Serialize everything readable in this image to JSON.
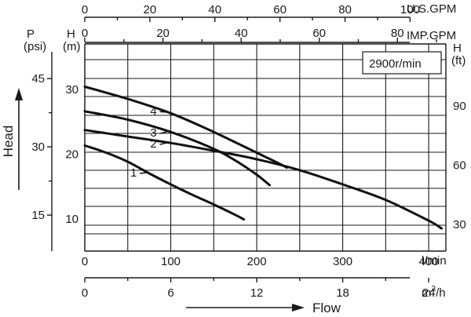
{
  "chart_data": {
    "type": "line",
    "speed_label": "2900r/min",
    "xlabel": "Flow",
    "ylabel": "Head",
    "grid": true,
    "axes": {
      "bottom_lmin": {
        "unit": "l/min",
        "ticks": [
          0,
          100,
          200,
          300,
          400
        ],
        "range": [
          0,
          420
        ]
      },
      "bottom_m3h": {
        "unit": "m³/h",
        "ticks": [
          0,
          6,
          12,
          18,
          24
        ],
        "range": [
          0,
          25.2
        ]
      },
      "top_usgpm": {
        "unit": "U.S.GPM",
        "ticks": [
          0,
          20,
          40,
          60,
          80,
          100
        ],
        "range": [
          0,
          111
        ]
      },
      "top_impgpm": {
        "unit": "IMP.GPM",
        "ticks": [
          0,
          20,
          40,
          60,
          80
        ],
        "range": [
          0,
          92.4
        ]
      },
      "left_m": {
        "unit": "H\n(m)",
        "ticks": [
          10,
          20,
          30
        ],
        "range": [
          5,
          37
        ]
      },
      "left_psi": {
        "unit": "P\n(psi)",
        "ticks": [
          15,
          30,
          45
        ],
        "range": [
          7.1,
          52.6
        ]
      },
      "right_ft": {
        "unit": "H\n(ft)",
        "ticks": [
          30,
          60,
          90
        ],
        "range": [
          16.4,
          121.4
        ]
      }
    },
    "series": [
      {
        "name": "1",
        "points": [
          [
            0,
            21.3
          ],
          [
            25,
            20.2
          ],
          [
            50,
            18.8
          ],
          [
            75,
            17.0
          ],
          [
            100,
            15.3
          ],
          [
            125,
            13.7
          ],
          [
            150,
            12.2
          ],
          [
            175,
            10.6
          ],
          [
            185,
            9.9
          ]
        ]
      },
      {
        "name": "2",
        "points": [
          [
            0,
            23.7
          ],
          [
            50,
            22.7
          ],
          [
            100,
            21.7
          ],
          [
            150,
            20.5
          ],
          [
            200,
            19.2
          ],
          [
            250,
            17.5
          ],
          [
            300,
            15.3
          ],
          [
            350,
            12.9
          ],
          [
            400,
            9.7
          ],
          [
            415,
            8.5
          ]
        ]
      },
      {
        "name": "3",
        "points": [
          [
            0,
            26.6
          ],
          [
            50,
            25.3
          ],
          [
            100,
            23.4
          ],
          [
            150,
            20.8
          ],
          [
            175,
            19.0
          ],
          [
            200,
            16.8
          ],
          [
            215,
            15.2
          ]
        ]
      },
      {
        "name": "4",
        "points": [
          [
            0,
            30.4
          ],
          [
            50,
            28.5
          ],
          [
            100,
            26.3
          ],
          [
            150,
            23.4
          ],
          [
            200,
            20.2
          ],
          [
            225,
            18.6
          ],
          [
            235,
            17.9
          ]
        ]
      }
    ]
  },
  "page": {
    "title": "",
    "unit_cubic_m_per_h_base": "m",
    "unit_cubic_m_per_h_exp": "3",
    "unit_cubic_m_per_h_tail": "/h"
  }
}
